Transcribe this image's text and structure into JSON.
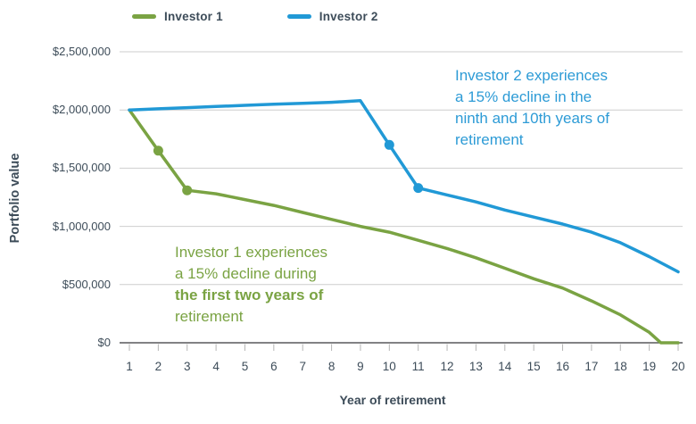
{
  "chart_data": {
    "type": "line",
    "xlabel": "Year of retirement",
    "ylabel": "Portfolio value",
    "x": [
      1,
      2,
      3,
      4,
      5,
      6,
      7,
      8,
      9,
      10,
      11,
      12,
      13,
      14,
      15,
      16,
      17,
      18,
      19,
      20
    ],
    "x_tick_labels": [
      "1",
      "2",
      "3",
      "4",
      "5",
      "6",
      "7",
      "8",
      "9",
      "10",
      "11",
      "12",
      "13",
      "14",
      "15",
      "16",
      "17",
      "18",
      "19",
      "20"
    ],
    "y_ticks": [
      0,
      500000,
      1000000,
      1500000,
      2000000,
      2500000
    ],
    "y_tick_labels": [
      "$0",
      "$500,000",
      "$1,000,000",
      "$1,500,000",
      "$2,000,000",
      "$2,500,000"
    ],
    "ylim": [
      0,
      2500000
    ],
    "grid": "horizontal-only",
    "legend_position": "top",
    "series": [
      {
        "name": "Investor 1",
        "color": "#7aa343",
        "points": [
          [
            1,
            2000000
          ],
          [
            2,
            1650000
          ],
          [
            3,
            1310000
          ],
          [
            4,
            1280000
          ],
          [
            5,
            1230000
          ],
          [
            6,
            1180000
          ],
          [
            7,
            1120000
          ],
          [
            8,
            1060000
          ],
          [
            9,
            1000000
          ],
          [
            10,
            950000
          ],
          [
            11,
            880000
          ],
          [
            12,
            810000
          ],
          [
            13,
            730000
          ],
          [
            14,
            640000
          ],
          [
            15,
            550000
          ],
          [
            16,
            470000
          ],
          [
            17,
            360000
          ],
          [
            18,
            240000
          ],
          [
            19,
            90000
          ],
          [
            19.4,
            0
          ],
          [
            20,
            0
          ]
        ],
        "markers": [
          [
            2,
            1650000
          ],
          [
            3,
            1310000
          ]
        ]
      },
      {
        "name": "Investor 2",
        "color": "#2199d6",
        "points": [
          [
            1,
            2000000
          ],
          [
            2,
            2010000
          ],
          [
            3,
            2020000
          ],
          [
            4,
            2030000
          ],
          [
            5,
            2040000
          ],
          [
            6,
            2050000
          ],
          [
            7,
            2057000
          ],
          [
            8,
            2066000
          ],
          [
            9,
            2080000
          ],
          [
            10,
            1700000
          ],
          [
            11,
            1330000
          ],
          [
            12,
            1270000
          ],
          [
            13,
            1210000
          ],
          [
            14,
            1140000
          ],
          [
            15,
            1080000
          ],
          [
            16,
            1020000
          ],
          [
            17,
            950000
          ],
          [
            18,
            860000
          ],
          [
            19,
            740000
          ],
          [
            20,
            610000
          ]
        ],
        "markers": [
          [
            10,
            1700000
          ],
          [
            11,
            1330000
          ]
        ]
      }
    ],
    "annotations": [
      {
        "for_series": "Investor 1",
        "color": "#7aa343",
        "lines": [
          "Investor 1 experiences",
          "a 15% decline during",
          "the first two years of",
          "retirement"
        ],
        "bold_line_index": 2
      },
      {
        "for_series": "Investor 2",
        "color": "#2d9bd6",
        "lines": [
          "Investor 2 experiences",
          "a 15% decline in the",
          "ninth and 10th years of",
          "retirement"
        ],
        "bold_line_index": null
      }
    ]
  },
  "style_colors": {
    "text": "#3d4c59",
    "gridline": "#cecece",
    "axis_line": "#58595b",
    "tick_mark": "#b5b5b5"
  }
}
